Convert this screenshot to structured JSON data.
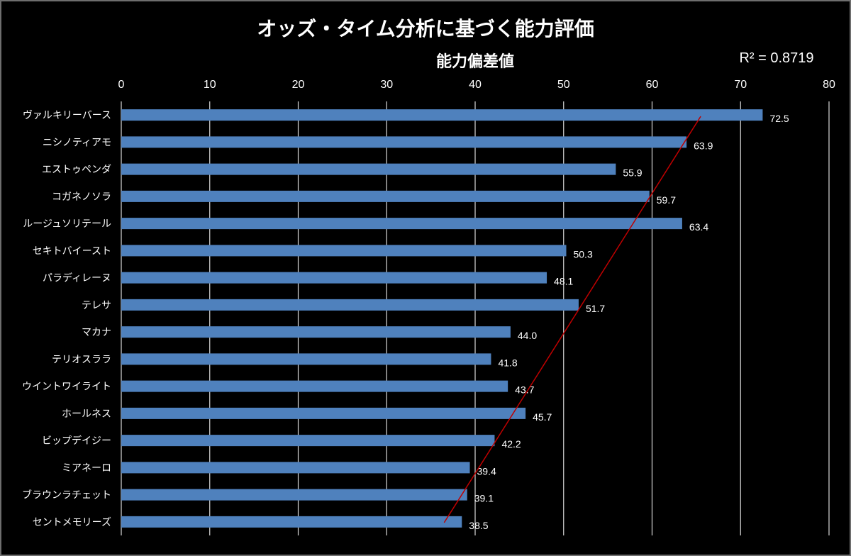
{
  "chart_data": {
    "type": "bar",
    "orientation": "horizontal",
    "title": "オッズ・タイム分析に基づく能力評価",
    "subtitle": "能力偏差値",
    "annotation": "R² = 0.8719",
    "xlim": [
      0,
      80
    ],
    "xticks": [
      0,
      10,
      20,
      30,
      40,
      50,
      60,
      70,
      80
    ],
    "grid": true,
    "categories": [
      "ヴァルキリーバース",
      "ニシノティアモ",
      "エストゥペンダ",
      "コガネノソラ",
      "ルージュソリテール",
      "セキトバイースト",
      "パラディレーヌ",
      "テレサ",
      "マカナ",
      "テリオスララ",
      "ウイントワイライト",
      "ホールネス",
      "ビップデイジー",
      "ミアネーロ",
      "ブラウンラチェット",
      "セントメモリーズ"
    ],
    "values": [
      72.5,
      63.9,
      55.9,
      59.7,
      63.4,
      50.3,
      48.1,
      51.7,
      44.0,
      41.8,
      43.7,
      45.7,
      42.2,
      39.4,
      39.1,
      38.5
    ],
    "value_labels": [
      "72.5",
      "63.9",
      "55.9",
      "59.7",
      "63.4",
      "50.3",
      "48.1",
      "51.7",
      "44.0",
      "41.8",
      "43.7",
      "45.7",
      "42.2",
      "39.4",
      "39.1",
      "38.5"
    ],
    "trendline": {
      "type": "linear",
      "start_value": 65.5,
      "end_value": 36.5
    },
    "colors": {
      "bar": "#4f81bd",
      "trendline": "#c00000",
      "background": "#000000",
      "text": "#ffffff",
      "grid": "#d9d9d9"
    }
  }
}
